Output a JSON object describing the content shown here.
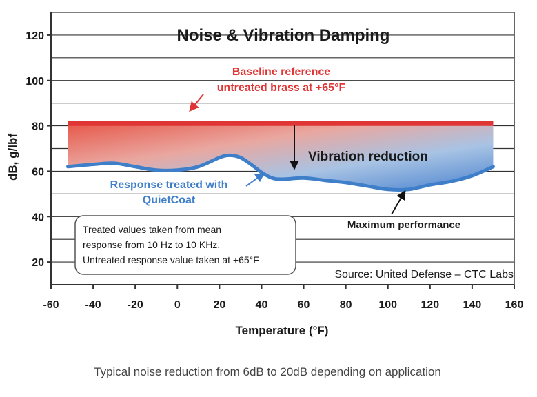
{
  "chart_data": {
    "type": "area",
    "title": "Noise & Vibration Damping",
    "xlabel": "Temperature (°F)",
    "ylabel": "dB, g/lbf",
    "xlim": [
      -60,
      160
    ],
    "ylim": [
      10,
      130
    ],
    "x_ticks": [
      -60,
      -40,
      -20,
      0,
      20,
      40,
      60,
      80,
      100,
      120,
      140,
      160
    ],
    "y_ticks": [
      20,
      40,
      60,
      80,
      100,
      120
    ],
    "grid": "horizontal",
    "series": [
      {
        "name": "Baseline reference untreated brass at +65°F",
        "color": "#e03535",
        "x": [
          -52,
          150
        ],
        "y": [
          81,
          81
        ]
      },
      {
        "name": "Response treated with QuietCoat",
        "color": "#3f7fca",
        "x": [
          -52,
          -40,
          -30,
          -20,
          -10,
          0,
          10,
          20,
          25,
          30,
          35,
          40,
          45,
          50,
          60,
          70,
          80,
          90,
          100,
          110,
          120,
          130,
          140,
          150
        ],
        "y": [
          62,
          63,
          63.5,
          62,
          60.5,
          60.5,
          62,
          66,
          67,
          66,
          63,
          59.5,
          57,
          56.5,
          57,
          56,
          55,
          53.5,
          52,
          52,
          54,
          55.5,
          58,
          62
        ]
      }
    ],
    "annotations": {
      "baseline_line1": "Baseline reference",
      "baseline_line2": "untreated brass at +65°F",
      "vibration_reduction": "Vibration reduction",
      "response_line1": "Response treated with",
      "response_line2": "QuietCoat",
      "max_performance": "Maximum performance",
      "note_line1": "Treated values taken from mean",
      "note_line2": "response from 10 Hz to 10 KHz.",
      "note_line3": "Untreated response value taken at +65°F",
      "source": "Source: United Defense – CTC Labs"
    },
    "colors": {
      "baseline_red": "#e03535",
      "treated_blue": "#3f7fca",
      "grid": "#333333"
    }
  },
  "caption": "Typical noise reduction from 6dB to 20dB depending on application"
}
